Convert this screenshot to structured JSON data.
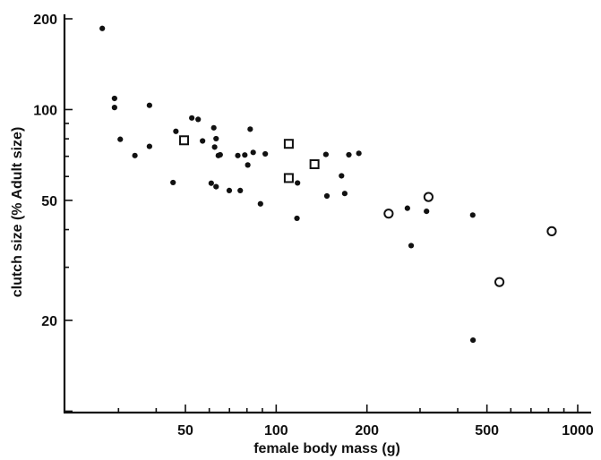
{
  "chart_data": {
    "type": "scatter",
    "title": "",
    "xlabel": "female body mass (g)",
    "ylabel": "clutch size (% Adult size)",
    "x_scale": "log",
    "y_scale": "log",
    "xlim": [
      18,
      1000
    ],
    "ylim": [
      10,
      200
    ],
    "x_ticks": [
      {
        "value": 50,
        "label": "50"
      },
      {
        "value": 100,
        "label": "100"
      },
      {
        "value": 200,
        "label": "200"
      },
      {
        "value": 500,
        "label": "500"
      },
      {
        "value": 1000,
        "label": "1000"
      }
    ],
    "y_ticks": [
      {
        "value": 20,
        "label": "20"
      },
      {
        "value": 50,
        "label": "50"
      },
      {
        "value": 100,
        "label": "100"
      },
      {
        "value": 200,
        "label": "200"
      }
    ],
    "grid": false,
    "legend": "none",
    "series": [
      {
        "marker": "filled-circle",
        "color": "#111111",
        "x": [
          26.5,
          29.1,
          29.1,
          30.4,
          34.0,
          38.0,
          38.0,
          45.5,
          46.5,
          52.5,
          55.1,
          57.0,
          60.9,
          62.1,
          62.5,
          63.2,
          63.2,
          64.3,
          65.2,
          69.9,
          74.6,
          76.0,
          78.7,
          80.5,
          82.0,
          83.9,
          88.7,
          92.0,
          117.2,
          117.7,
          146.2,
          147.3,
          164.7,
          168.8,
          174.2,
          188.0,
          272.4,
          280.3,
          315.2,
          448.6,
          449.6
        ],
        "y": [
          185.8,
          108.9,
          101.6,
          79.7,
          70.4,
          103.3,
          75.5,
          57.3,
          84.7,
          93.8,
          92.8,
          78.7,
          57.0,
          87.0,
          75.1,
          80.1,
          55.5,
          70.4,
          70.8,
          53.9,
          70.4,
          53.9,
          70.7,
          65.5,
          86.1,
          72.1,
          48.7,
          71.3,
          43.6,
          57.1,
          71.0,
          51.7,
          60.3,
          52.7,
          70.8,
          71.6,
          47.1,
          35.4,
          46.0,
          44.7,
          17.2
        ]
      },
      {
        "marker": "open-square",
        "color": "#111111",
        "x": [
          49.5,
          110.1,
          110.1,
          134.0
        ],
        "y": [
          79.1,
          77.0,
          59.3,
          65.9
        ]
      },
      {
        "marker": "open-circle",
        "color": "#111111",
        "x": [
          236.0,
          320.0,
          550.0,
          820.0
        ],
        "y": [
          45.2,
          51.3,
          26.8,
          39.5
        ]
      }
    ]
  }
}
